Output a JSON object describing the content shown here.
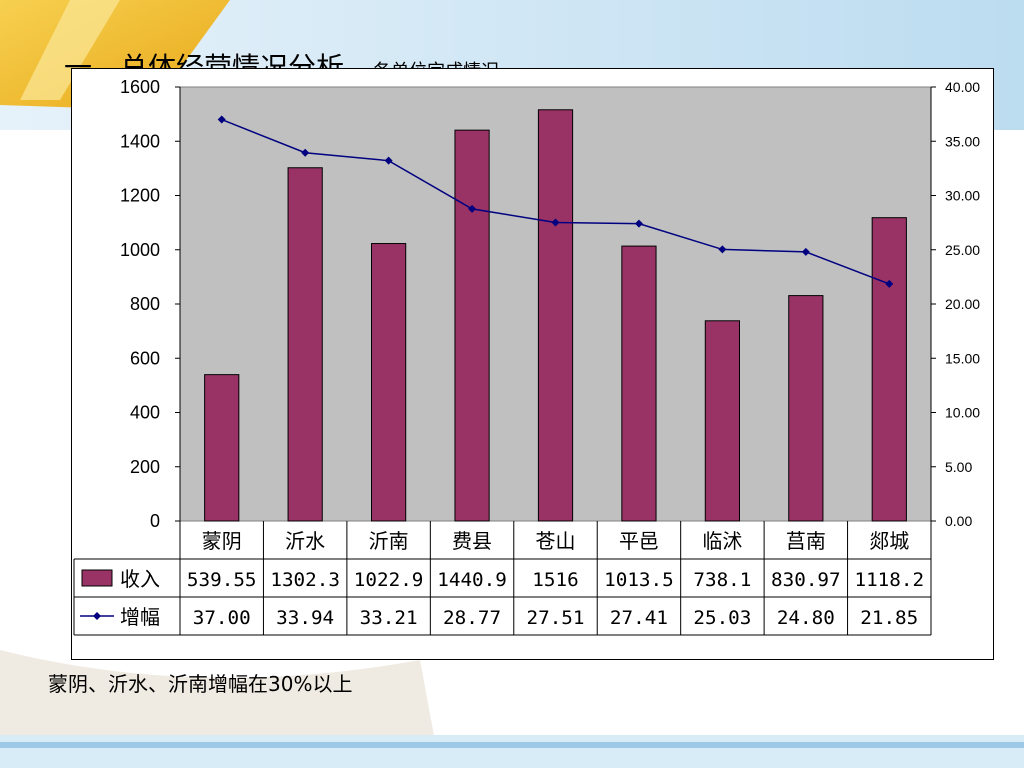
{
  "slide": {
    "title_main": "一、总体经营情况分析",
    "title_sub": "各单位完成情况",
    "caption": "蒙阴、沂水、沂南增幅在30%以上"
  },
  "colors": {
    "bar": "#993366",
    "line": "#000080",
    "plot_bg": "#c0c0c0",
    "slide_accent": "#f5c030",
    "slide_blue": "#cfe6f4"
  },
  "chart_data": {
    "type": "bar",
    "categories": [
      "蒙阴",
      "沂水",
      "沂南",
      "费县",
      "苍山",
      "平邑",
      "临沭",
      "莒南",
      "郯城"
    ],
    "series": [
      {
        "name": "收入",
        "type": "bar",
        "axis": "left",
        "values": [
          539.55,
          1302.3,
          1022.9,
          1440.9,
          1516,
          1013.5,
          738.1,
          830.97,
          1118.2
        ],
        "labels": [
          "539.55",
          "1302.3",
          "1022.9",
          "1440.9",
          "1516",
          "1013.5",
          "738.1",
          "830.97",
          "1118.2"
        ]
      },
      {
        "name": "增幅",
        "type": "line",
        "axis": "right",
        "values": [
          37.0,
          33.94,
          33.21,
          28.77,
          27.51,
          27.41,
          25.03,
          24.8,
          21.85
        ],
        "labels": [
          "37.00",
          "33.94",
          "33.21",
          "28.77",
          "27.51",
          "27.41",
          "25.03",
          "24.80",
          "21.85"
        ]
      }
    ],
    "y_left": {
      "min": 0,
      "max": 1600,
      "ticks": [
        "0",
        "200",
        "400",
        "600",
        "800",
        "1000",
        "1200",
        "1400",
        "1600"
      ]
    },
    "y_right": {
      "min": 0,
      "max": 40,
      "ticks": [
        "0.00",
        "5.00",
        "10.00",
        "15.00",
        "20.00",
        "25.00",
        "30.00",
        "35.00",
        "40.00"
      ]
    },
    "data_table": true,
    "grid": false
  }
}
